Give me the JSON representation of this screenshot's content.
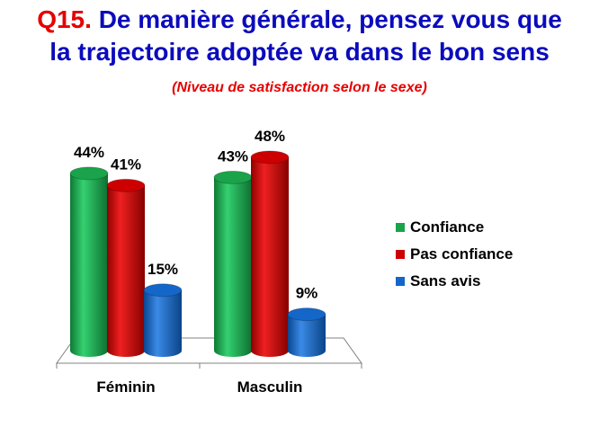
{
  "title": {
    "prefix": "Q15.",
    "line1": "De manière générale, pensez  vous que",
    "line2": "la trajectoire adoptée va dans le bon sens"
  },
  "subtitle": "(Niveau de satisfaction selon  le sexe)",
  "chart_data": {
    "type": "bar",
    "categories": [
      "Féminin",
      "Masculin"
    ],
    "series": [
      {
        "name": "Confiance",
        "values": [
          44,
          43
        ],
        "labels": [
          "44%",
          "43%"
        ],
        "color": "#1aa34a"
      },
      {
        "name": "Pas confiance",
        "values": [
          41,
          48
        ],
        "labels": [
          "41%",
          "48%"
        ],
        "color": "#cc0000"
      },
      {
        "name": "Sans avis",
        "values": [
          15,
          9
        ],
        "labels": [
          "15%",
          "9%"
        ],
        "color": "#1466c8"
      }
    ],
    "unit": "%",
    "ylim": [
      0,
      50
    ],
    "legend_position": "right",
    "grid": false,
    "style": "3d-cylinder"
  }
}
